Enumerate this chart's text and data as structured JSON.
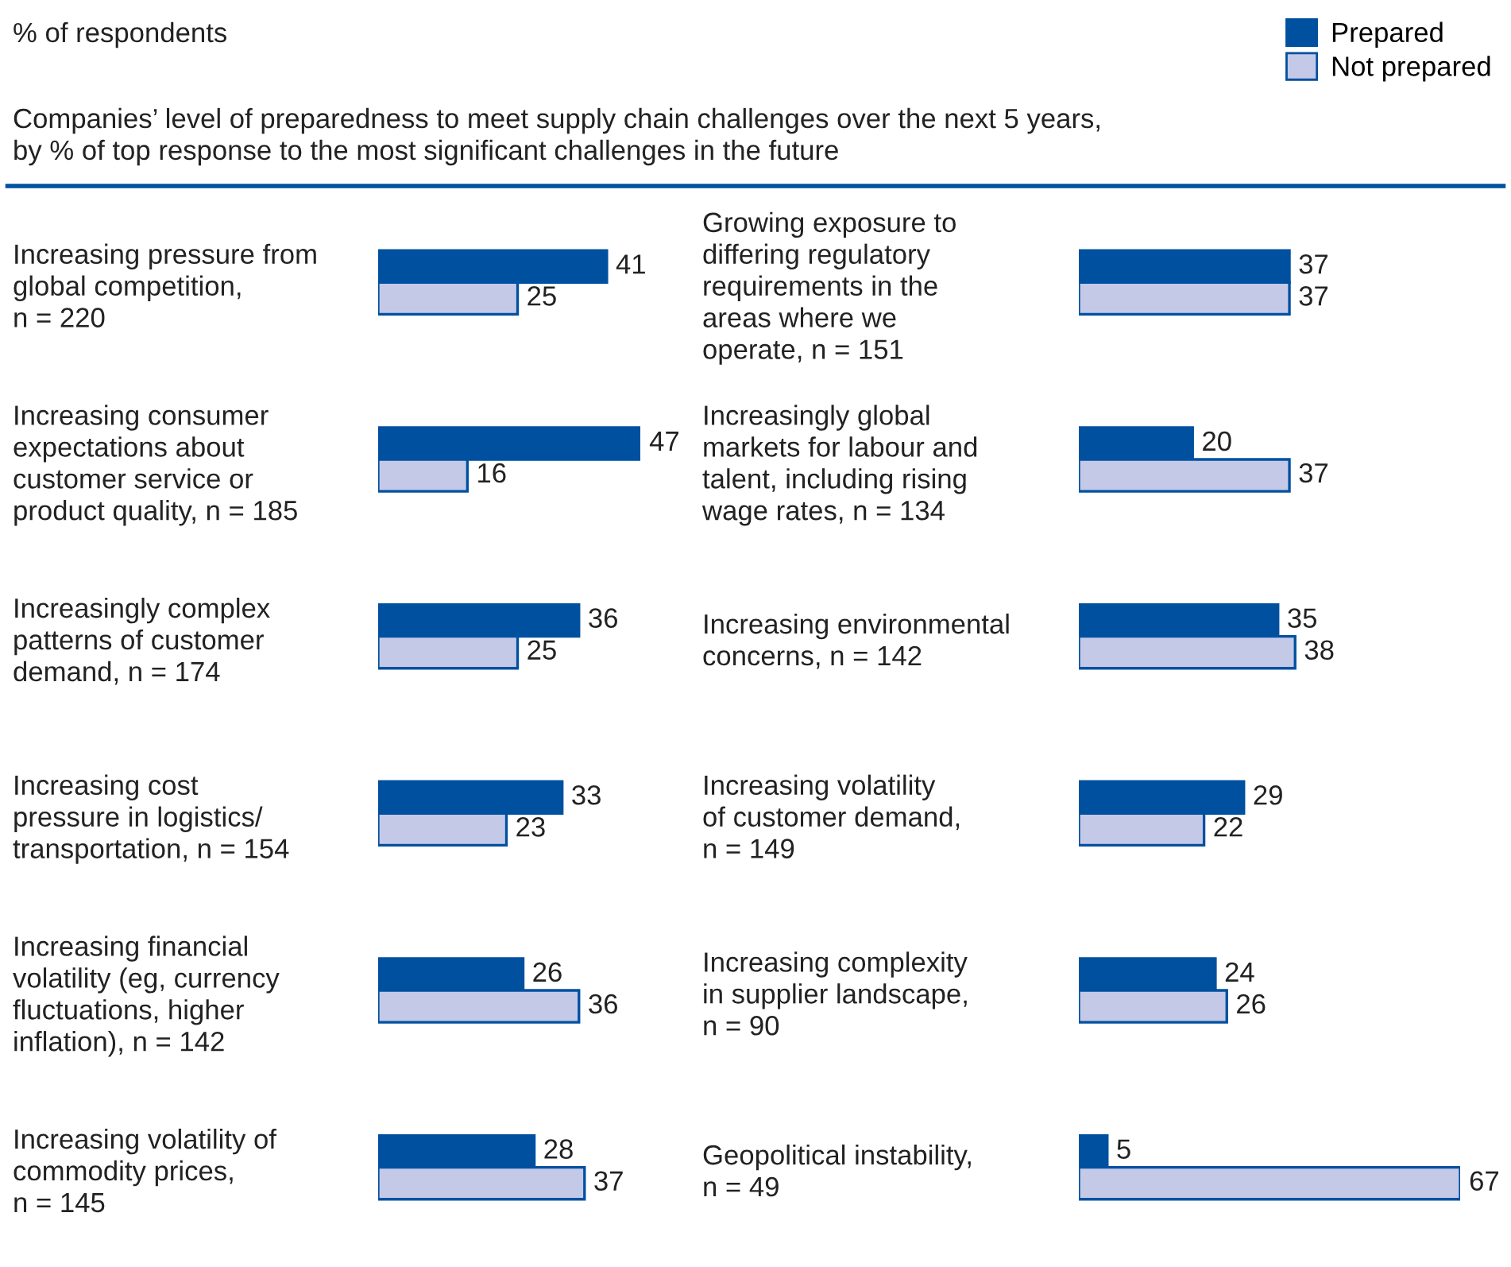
{
  "chart_data": [
    {
      "type": "bar",
      "orientation": "horizontal",
      "title": "% of respondents",
      "subtitle": "Companies’ level of preparedness to meet supply chain challenges over the next 5 years,\nby % of top response to the most significant challenges in the future",
      "legend": "top right",
      "data_labels": true,
      "xlim": [
        0,
        47
      ],
      "categories": [
        "Increasing pressure from\nglobal competition,\nn = 220",
        "Increasing consumer\nexpectations about\ncustomer service or\nproduct quality, n = 185",
        "Increasingly complex\npatterns of customer\ndemand, n = 174",
        "Increasing cost\npressure in logistics/\ntransportation, n = 154",
        "Increasing financial\nvolatility (eg, currency\nfluctuations, higher\ninflation), n = 142",
        "Increasing volatility of\ncommodity prices,\nn = 145"
      ],
      "series": [
        {
          "name": "Prepared",
          "color": "#0050a0",
          "values": [
            41,
            47,
            36,
            33,
            26,
            28
          ]
        },
        {
          "name": "Not prepared",
          "color": "#c5c9e8",
          "values": [
            25,
            16,
            25,
            23,
            36,
            37
          ]
        }
      ]
    },
    {
      "type": "bar",
      "orientation": "horizontal",
      "data_labels": true,
      "xlim": [
        0,
        67
      ],
      "categories": [
        "Growing exposure to\ndiffering regulatory\nrequirements in the\nareas where we\noperate, n = 151",
        "Increasingly global\nmarkets for labour and\ntalent, including rising\nwage rates, n = 134",
        "Increasing environmental\nconcerns, n = 142",
        "Increasing volatility\nof customer demand,\nn = 149",
        "Increasing complexity\nin supplier landscape,\nn = 90",
        "Geopolitical instability,\nn = 49"
      ],
      "series": [
        {
          "color": "#0050a0",
          "values": [
            37,
            20,
            35,
            29,
            24,
            5
          ]
        },
        {
          "color": "#c5c9e8",
          "values": [
            37,
            37,
            38,
            22,
            26,
            67
          ]
        }
      ]
    }
  ]
}
